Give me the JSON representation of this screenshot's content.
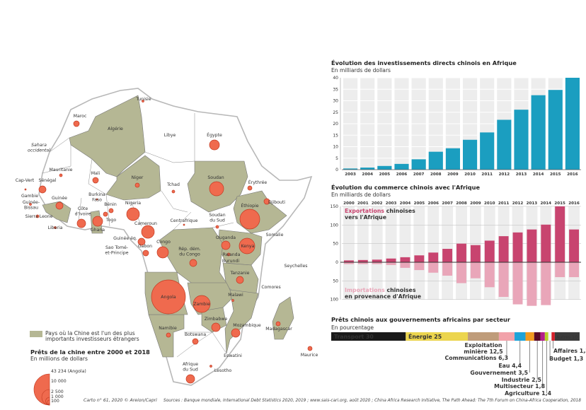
{
  "colors": {
    "green": "#b5b794",
    "circle": "#ef6a4e",
    "circle_stroke": "#c23a22",
    "fdi_bar": "#1b9ec0",
    "exports": "#c8446f",
    "imports": "#e9a6b9",
    "stripe": "#ededed"
  },
  "map": {
    "labels": [
      {
        "lines": [
          "Tunisie"
        ]
      },
      {
        "lines": [
          "Maroc"
        ]
      },
      {
        "lines": [
          "Algérie"
        ]
      },
      {
        "lines": [
          "Libye"
        ]
      },
      {
        "lines": [
          "Égypte"
        ]
      },
      {
        "lines": [
          "Sahara",
          "occidental"
        ]
      },
      {
        "lines": [
          "Mauritanie"
        ]
      },
      {
        "lines": [
          "Mali"
        ]
      },
      {
        "lines": [
          "Niger"
        ]
      },
      {
        "lines": [
          "Tchad"
        ]
      },
      {
        "lines": [
          "Soudan"
        ]
      },
      {
        "lines": [
          "Érythrée"
        ]
      },
      {
        "lines": [
          "Djibouti"
        ]
      },
      {
        "lines": [
          "Éthiopie"
        ]
      },
      {
        "lines": [
          "Somalie"
        ]
      },
      {
        "lines": [
          "Cap-Vert"
        ]
      },
      {
        "lines": [
          "Sénégal"
        ]
      },
      {
        "lines": [
          "Gambie"
        ]
      },
      {
        "lines": [
          "Guinée"
        ]
      },
      {
        "lines": [
          "Guinée-",
          "Bissau"
        ]
      },
      {
        "lines": [
          "Sierra Leone"
        ]
      },
      {
        "lines": [
          "Liberia"
        ]
      },
      {
        "lines": [
          "Burkina",
          "Faso"
        ]
      },
      {
        "lines": [
          "Bénin"
        ]
      },
      {
        "lines": [
          "Côte",
          "d'Ivoire"
        ]
      },
      {
        "lines": [
          "Togo"
        ]
      },
      {
        "lines": [
          "Ghana"
        ]
      },
      {
        "lines": [
          "Nigeria"
        ]
      },
      {
        "lines": [
          "Cameroun"
        ]
      },
      {
        "lines": [
          "Centrafrique"
        ]
      },
      {
        "lines": [
          "Soudan",
          "du Sud"
        ]
      },
      {
        "lines": [
          "Guinée éq."
        ]
      },
      {
        "lines": [
          "Sao Tomé-",
          "et-Principe"
        ]
      },
      {
        "lines": [
          "Gabon"
        ]
      },
      {
        "lines": [
          "Congo"
        ]
      },
      {
        "lines": [
          "Rép. dém.",
          "du Congo"
        ]
      },
      {
        "lines": [
          "Ouganda"
        ]
      },
      {
        "lines": [
          "Kenya"
        ]
      },
      {
        "lines": [
          "Rwanda"
        ]
      },
      {
        "lines": [
          "Burundi"
        ]
      },
      {
        "lines": [
          "Tanzanie"
        ]
      },
      {
        "lines": [
          "Seychelles"
        ]
      },
      {
        "lines": [
          "Comores"
        ]
      },
      {
        "lines": [
          "Angola"
        ]
      },
      {
        "lines": [
          "Zambie"
        ]
      },
      {
        "lines": [
          "Malawi"
        ]
      },
      {
        "lines": [
          "Zimbabwe"
        ]
      },
      {
        "lines": [
          "Mozambique"
        ]
      },
      {
        "lines": [
          "Madagascar"
        ]
      },
      {
        "lines": [
          "Maurice"
        ]
      },
      {
        "lines": [
          "Namibie"
        ]
      },
      {
        "lines": [
          "Botswana"
        ]
      },
      {
        "lines": [
          "Eswatini"
        ]
      },
      {
        "lines": [
          "Afrique",
          "du Sud"
        ]
      },
      {
        "lines": [
          "Lesotho"
        ]
      }
    ],
    "legend": {
      "area_lines": [
        "Pays où la Chine est l'un des plus",
        "importants investisseurs étrangers"
      ],
      "loans_title": "Prêts de la chine entre 2000 et 2018",
      "loans_sub": "En millions de dollars",
      "loans_values": [
        {
          "value": 43234,
          "label": "43 234 (Angola)"
        },
        {
          "value": 10000,
          "label": "10 000"
        },
        {
          "value": 2500,
          "label": "2 500"
        },
        {
          "value": 1000,
          "label": "1 000"
        },
        {
          "value": 100,
          "label": "100"
        }
      ]
    }
  },
  "chart_data": [
    {
      "type": "bar",
      "title": "Évolution des investissements directs chinois en Afrique",
      "subtitle": "En milliards de dollars",
      "categories": [
        "2003",
        "2004",
        "2005",
        "2006",
        "2007",
        "2008",
        "2009",
        "2010",
        "2011",
        "2012",
        "2013",
        "2014",
        "2015",
        "2016"
      ],
      "values": [
        0.5,
        0.9,
        1.6,
        2.5,
        4.5,
        7.8,
        9.3,
        13,
        16.2,
        21.7,
        26.1,
        32.4,
        34.7,
        40
      ],
      "ylim": [
        0,
        40
      ],
      "yticks": [
        0,
        5,
        10,
        15,
        20,
        25,
        30,
        35,
        40
      ],
      "grid": true
    },
    {
      "type": "bar",
      "title": "Évolution du commerce chinois avec l'Afrique",
      "subtitle": "En milliards de dollars",
      "categories": [
        "2000",
        "2001",
        "2002",
        "2003",
        "2004",
        "2005",
        "2006",
        "2007",
        "2008",
        "2009",
        "2010",
        "2011",
        "2012",
        "2013",
        "2014",
        "2015",
        "2016"
      ],
      "series": [
        {
          "name": "Exportations chinoises vers l'Afrique",
          "name_parts": [
            "Exportations",
            " chinoises",
            "vers l'Afrique"
          ],
          "values": [
            5,
            6,
            7,
            10,
            13.5,
            18.5,
            26,
            36,
            50,
            46,
            58,
            70,
            80,
            88,
            101,
            150,
            88
          ]
        },
        {
          "name": "Importations chinoises en provenance d'Afrique",
          "name_parts": [
            "Importations",
            " chinoises",
            "en provenance d'Afrique"
          ],
          "values": [
            5,
            5,
            5,
            7.5,
            15,
            21,
            28,
            36,
            56,
            43,
            67,
            93,
            113,
            117,
            115,
            40,
            40
          ]
        }
      ],
      "ylim": [
        -100,
        150
      ],
      "yticks": [
        {
          "v": 150,
          "label": "150"
        },
        {
          "v": 100,
          "label": "100"
        },
        {
          "v": 50,
          "label": "50"
        },
        {
          "v": 0,
          "label": "0"
        },
        {
          "v": -50,
          "label": "50"
        },
        {
          "v": -100,
          "label": "100"
        }
      ],
      "grid": true
    },
    {
      "type": "bar",
      "stacked": true,
      "title": "Prêts chinois aux gouvernements africains par secteur",
      "subtitle": "En pourcentage",
      "segments": [
        {
          "label": "Transport 30",
          "value": 30,
          "color": "#1a1a1a"
        },
        {
          "label": "Énergie 25",
          "value": 25,
          "color": "#ecd54e"
        },
        {
          "label": "Exploitation minière 12,5",
          "lines": [
            "Exploitation",
            "minière 12,5"
          ],
          "value": 12.5,
          "color": "#bf9c7a"
        },
        {
          "label": "Communications 6,3",
          "value": 6.3,
          "color": "#f2a2aa"
        },
        {
          "label": "Eau 4,4",
          "value": 4.4,
          "color": "#1ea3d8"
        },
        {
          "label": "Gouvernement 3,5",
          "value": 3.5,
          "color": "#f39a1e"
        },
        {
          "label": "Industrie 2,5",
          "value": 2.5,
          "color": "#5a0a26"
        },
        {
          "label": "Multisecteur 1,8",
          "value": 1.8,
          "color": "#b41e8a"
        },
        {
          "label": "Agriculture 1,4",
          "value": 1.4,
          "color": "#b7cf2a"
        },
        {
          "label": "Budget 1,3",
          "value": 1.3,
          "color": "#f4f4f4"
        },
        {
          "label": "Affaires 1,3",
          "value": 1.3,
          "color": "#d4202a"
        },
        {
          "label": "Autres 10",
          "value": 10,
          "color": "#3c3c3c"
        }
      ]
    }
  ],
  "footer": {
    "credit": "Carto n° 61, 2020 © Areion/Capri",
    "sources": "Sources : Banque mondiale, International Debt Statistics 2020, 2019 ; www.sais-cari.org, août 2020 ; China Africa Research Initiative, The Path Ahead: The 7th Forum on China-Africa Cooperation, 2018"
  }
}
